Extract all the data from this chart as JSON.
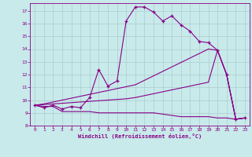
{
  "xlabel": "Windchill (Refroidissement éolien,°C)",
  "bg_color": "#c8eaea",
  "line_color": "#880088",
  "grid_color": "#aacccc",
  "xlim": [
    -0.5,
    23.5
  ],
  "ylim": [
    8,
    17.6
  ],
  "yticks": [
    8,
    9,
    10,
    11,
    12,
    13,
    14,
    15,
    16,
    17
  ],
  "xticks": [
    0,
    1,
    2,
    3,
    4,
    5,
    6,
    7,
    8,
    9,
    10,
    11,
    12,
    13,
    14,
    15,
    16,
    17,
    18,
    19,
    20,
    21,
    22,
    23
  ],
  "line1_x": [
    0,
    1,
    2,
    3,
    4,
    5,
    6,
    7,
    8,
    9,
    10,
    11,
    12,
    13,
    14,
    15,
    16,
    17,
    18,
    19,
    20,
    21,
    22,
    23
  ],
  "line1_y": [
    9.6,
    9.4,
    9.6,
    9.3,
    9.5,
    9.4,
    10.2,
    12.4,
    11.1,
    11.5,
    16.2,
    17.3,
    17.3,
    16.9,
    16.2,
    16.6,
    15.9,
    15.4,
    14.6,
    14.5,
    13.9,
    12.0,
    8.5,
    8.6
  ],
  "line2_x": [
    0,
    1,
    2,
    3,
    4,
    5,
    6,
    7,
    8,
    9,
    10,
    11,
    12,
    13,
    14,
    15,
    16,
    17,
    18,
    19,
    20,
    21,
    22,
    23
  ],
  "line2_y": [
    9.6,
    9.7,
    9.85,
    10.0,
    10.15,
    10.3,
    10.45,
    10.6,
    10.75,
    10.9,
    11.05,
    11.2,
    11.55,
    11.9,
    12.25,
    12.6,
    12.95,
    13.3,
    13.65,
    14.0,
    13.9,
    12.0,
    8.5,
    8.6
  ],
  "line3_x": [
    0,
    1,
    2,
    3,
    4,
    5,
    6,
    7,
    8,
    9,
    10,
    11,
    12,
    13,
    14,
    15,
    16,
    17,
    18,
    19,
    20,
    21,
    22,
    23
  ],
  "line3_y": [
    9.6,
    9.65,
    9.7,
    9.75,
    9.8,
    9.85,
    9.9,
    9.95,
    10.0,
    10.05,
    10.1,
    10.2,
    10.35,
    10.5,
    10.65,
    10.8,
    10.95,
    11.1,
    11.25,
    11.4,
    13.9,
    12.0,
    8.5,
    8.6
  ],
  "line4_x": [
    0,
    1,
    2,
    3,
    4,
    5,
    6,
    7,
    8,
    9,
    10,
    11,
    12,
    13,
    14,
    15,
    16,
    17,
    18,
    19,
    20,
    21,
    22,
    23
  ],
  "line4_y": [
    9.6,
    9.5,
    9.5,
    9.1,
    9.1,
    9.1,
    9.1,
    9.0,
    9.0,
    9.0,
    9.0,
    9.0,
    9.0,
    9.0,
    8.9,
    8.8,
    8.7,
    8.7,
    8.7,
    8.7,
    8.6,
    8.6,
    8.5,
    8.6
  ]
}
